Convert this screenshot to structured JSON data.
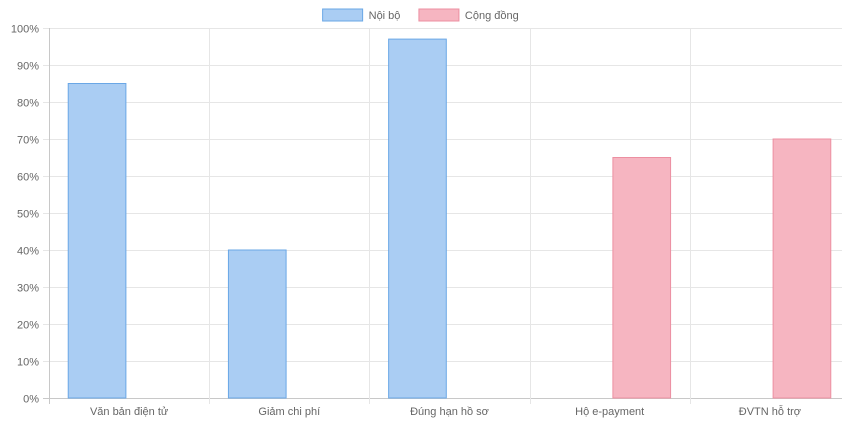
{
  "chart_data": {
    "type": "bar",
    "categories": [
      "Văn bản điện tử",
      "Giảm chi phí",
      "Đúng hạn hồ sơ",
      "Hộ e-payment",
      "ĐVTN hỗ trợ"
    ],
    "series": [
      {
        "name": "Nội bộ",
        "values": [
          85,
          40,
          97,
          null,
          null
        ],
        "fill": "#aacdf3",
        "stroke": "#6aa7e6"
      },
      {
        "name": "Cộng đồng",
        "values": [
          null,
          null,
          null,
          65,
          70
        ],
        "fill": "#f6b5c1",
        "stroke": "#ec8fa1"
      }
    ],
    "ylim": [
      0,
      100
    ],
    "yticks": [
      0,
      10,
      20,
      30,
      40,
      50,
      60,
      70,
      80,
      90,
      100
    ],
    "ytick_suffix": "%",
    "grid": true,
    "legend_position": "top-center"
  }
}
